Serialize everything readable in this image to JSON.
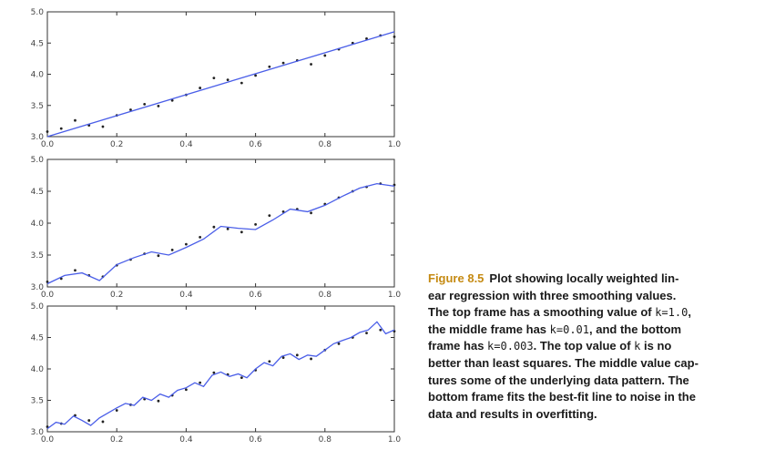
{
  "chart_data": [
    {
      "type": "scatter",
      "xlim": [
        0.0,
        1.0
      ],
      "ylim": [
        3.0,
        5.0
      ],
      "x_ticks": [
        "0.0",
        "0.2",
        "0.4",
        "0.6",
        "0.8",
        "1.0"
      ],
      "y_ticks": [
        "3.0",
        "3.5",
        "4.0",
        "4.5",
        "5.0"
      ],
      "grid": false,
      "series": [
        {
          "kind": "points",
          "color": "#222222",
          "x": [
            0.0,
            0.04,
            0.08,
            0.12,
            0.16,
            0.2,
            0.24,
            0.28,
            0.32,
            0.36,
            0.4,
            0.44,
            0.48,
            0.52,
            0.56,
            0.6,
            0.64,
            0.68,
            0.72,
            0.76,
            0.8,
            0.84,
            0.88,
            0.92,
            0.96,
            1.0
          ],
          "y": [
            3.08,
            3.13,
            3.26,
            3.18,
            3.16,
            3.34,
            3.43,
            3.52,
            3.49,
            3.58,
            3.67,
            3.78,
            3.94,
            3.91,
            3.86,
            3.98,
            4.12,
            4.18,
            4.22,
            4.16,
            4.3,
            4.4,
            4.5,
            4.57,
            4.62,
            4.6
          ]
        },
        {
          "kind": "line",
          "color": "#4a5ee8",
          "x": [
            0.0,
            1.0
          ],
          "y": [
            3.0,
            4.68
          ]
        }
      ]
    },
    {
      "type": "scatter",
      "xlim": [
        0.0,
        1.0
      ],
      "ylim": [
        3.0,
        5.0
      ],
      "x_ticks": [
        "0.0",
        "0.2",
        "0.4",
        "0.6",
        "0.8",
        "1.0"
      ],
      "y_ticks": [
        "3.0",
        "3.5",
        "4.0",
        "4.5",
        "5.0"
      ],
      "grid": false,
      "series": [
        {
          "kind": "points",
          "color": "#222222",
          "x": [
            0.0,
            0.04,
            0.08,
            0.12,
            0.16,
            0.2,
            0.24,
            0.28,
            0.32,
            0.36,
            0.4,
            0.44,
            0.48,
            0.52,
            0.56,
            0.6,
            0.64,
            0.68,
            0.72,
            0.76,
            0.8,
            0.84,
            0.88,
            0.92,
            0.96,
            1.0
          ],
          "y": [
            3.08,
            3.13,
            3.26,
            3.18,
            3.16,
            3.34,
            3.43,
            3.52,
            3.49,
            3.58,
            3.67,
            3.78,
            3.94,
            3.91,
            3.86,
            3.98,
            4.12,
            4.18,
            4.22,
            4.16,
            4.3,
            4.4,
            4.5,
            4.57,
            4.62,
            4.6
          ]
        },
        {
          "kind": "line",
          "color": "#4a5ee8",
          "x": [
            0.0,
            0.05,
            0.1,
            0.15,
            0.2,
            0.25,
            0.3,
            0.35,
            0.4,
            0.45,
            0.5,
            0.55,
            0.6,
            0.65,
            0.7,
            0.75,
            0.8,
            0.85,
            0.9,
            0.95,
            1.0
          ],
          "y": [
            3.05,
            3.18,
            3.22,
            3.1,
            3.35,
            3.46,
            3.55,
            3.5,
            3.62,
            3.75,
            3.95,
            3.92,
            3.9,
            4.05,
            4.22,
            4.18,
            4.28,
            4.42,
            4.55,
            4.62,
            4.58
          ]
        }
      ]
    },
    {
      "type": "scatter",
      "xlim": [
        0.0,
        1.0
      ],
      "ylim": [
        3.0,
        5.0
      ],
      "x_ticks": [
        "0.0",
        "0.2",
        "0.4",
        "0.6",
        "0.8",
        "1.0"
      ],
      "y_ticks": [
        "3.0",
        "3.5",
        "4.0",
        "4.5",
        "5.0"
      ],
      "grid": false,
      "series": [
        {
          "kind": "points",
          "color": "#222222",
          "x": [
            0.0,
            0.04,
            0.08,
            0.12,
            0.16,
            0.2,
            0.24,
            0.28,
            0.32,
            0.36,
            0.4,
            0.44,
            0.48,
            0.52,
            0.56,
            0.6,
            0.64,
            0.68,
            0.72,
            0.76,
            0.8,
            0.84,
            0.88,
            0.92,
            0.96,
            1.0
          ],
          "y": [
            3.08,
            3.13,
            3.26,
            3.18,
            3.16,
            3.34,
            3.43,
            3.52,
            3.49,
            3.58,
            3.67,
            3.78,
            3.94,
            3.91,
            3.86,
            3.98,
            4.12,
            4.18,
            4.22,
            4.16,
            4.3,
            4.4,
            4.5,
            4.57,
            4.62,
            4.6
          ]
        },
        {
          "kind": "line",
          "color": "#4a5ee8",
          "x": [
            0.0,
            0.025,
            0.05,
            0.075,
            0.1,
            0.125,
            0.15,
            0.175,
            0.2,
            0.225,
            0.25,
            0.275,
            0.3,
            0.325,
            0.35,
            0.375,
            0.4,
            0.425,
            0.45,
            0.475,
            0.5,
            0.525,
            0.55,
            0.575,
            0.6,
            0.625,
            0.65,
            0.675,
            0.7,
            0.725,
            0.75,
            0.775,
            0.8,
            0.825,
            0.85,
            0.875,
            0.9,
            0.925,
            0.95,
            0.975,
            1.0
          ],
          "y": [
            3.05,
            3.15,
            3.12,
            3.25,
            3.18,
            3.1,
            3.22,
            3.3,
            3.38,
            3.45,
            3.42,
            3.55,
            3.5,
            3.6,
            3.55,
            3.66,
            3.7,
            3.78,
            3.72,
            3.9,
            3.95,
            3.88,
            3.92,
            3.86,
            4.0,
            4.1,
            4.05,
            4.2,
            4.24,
            4.15,
            4.22,
            4.2,
            4.3,
            4.4,
            4.45,
            4.5,
            4.58,
            4.62,
            4.75,
            4.56,
            4.62
          ]
        }
      ]
    }
  ],
  "caption": {
    "figure_label": "Figure 8.5",
    "lines": [
      [
        {
          "t": "Plot showing locally weighted lin-"
        }
      ],
      [
        {
          "t": "ear regression with three smoothing values."
        }
      ],
      [
        {
          "t": "The top frame has a smoothing value of "
        },
        {
          "t": "k=1.0",
          "code": true
        },
        {
          "t": ","
        }
      ],
      [
        {
          "t": "the middle frame has "
        },
        {
          "t": "k=0.01",
          "code": true
        },
        {
          "t": ", and the bottom"
        }
      ],
      [
        {
          "t": "frame has "
        },
        {
          "t": "k=0.003",
          "code": true
        },
        {
          "t": ". The top value of "
        },
        {
          "t": "k",
          "code": true
        },
        {
          "t": " is no"
        }
      ],
      [
        {
          "t": "better than least squares. The middle value cap-"
        }
      ],
      [
        {
          "t": "tures some of the underlying data pattern. The"
        }
      ],
      [
        {
          "t": "bottom frame fits the best-fit line to noise in the"
        }
      ],
      [
        {
          "t": "data and results in overfitting."
        }
      ]
    ]
  }
}
